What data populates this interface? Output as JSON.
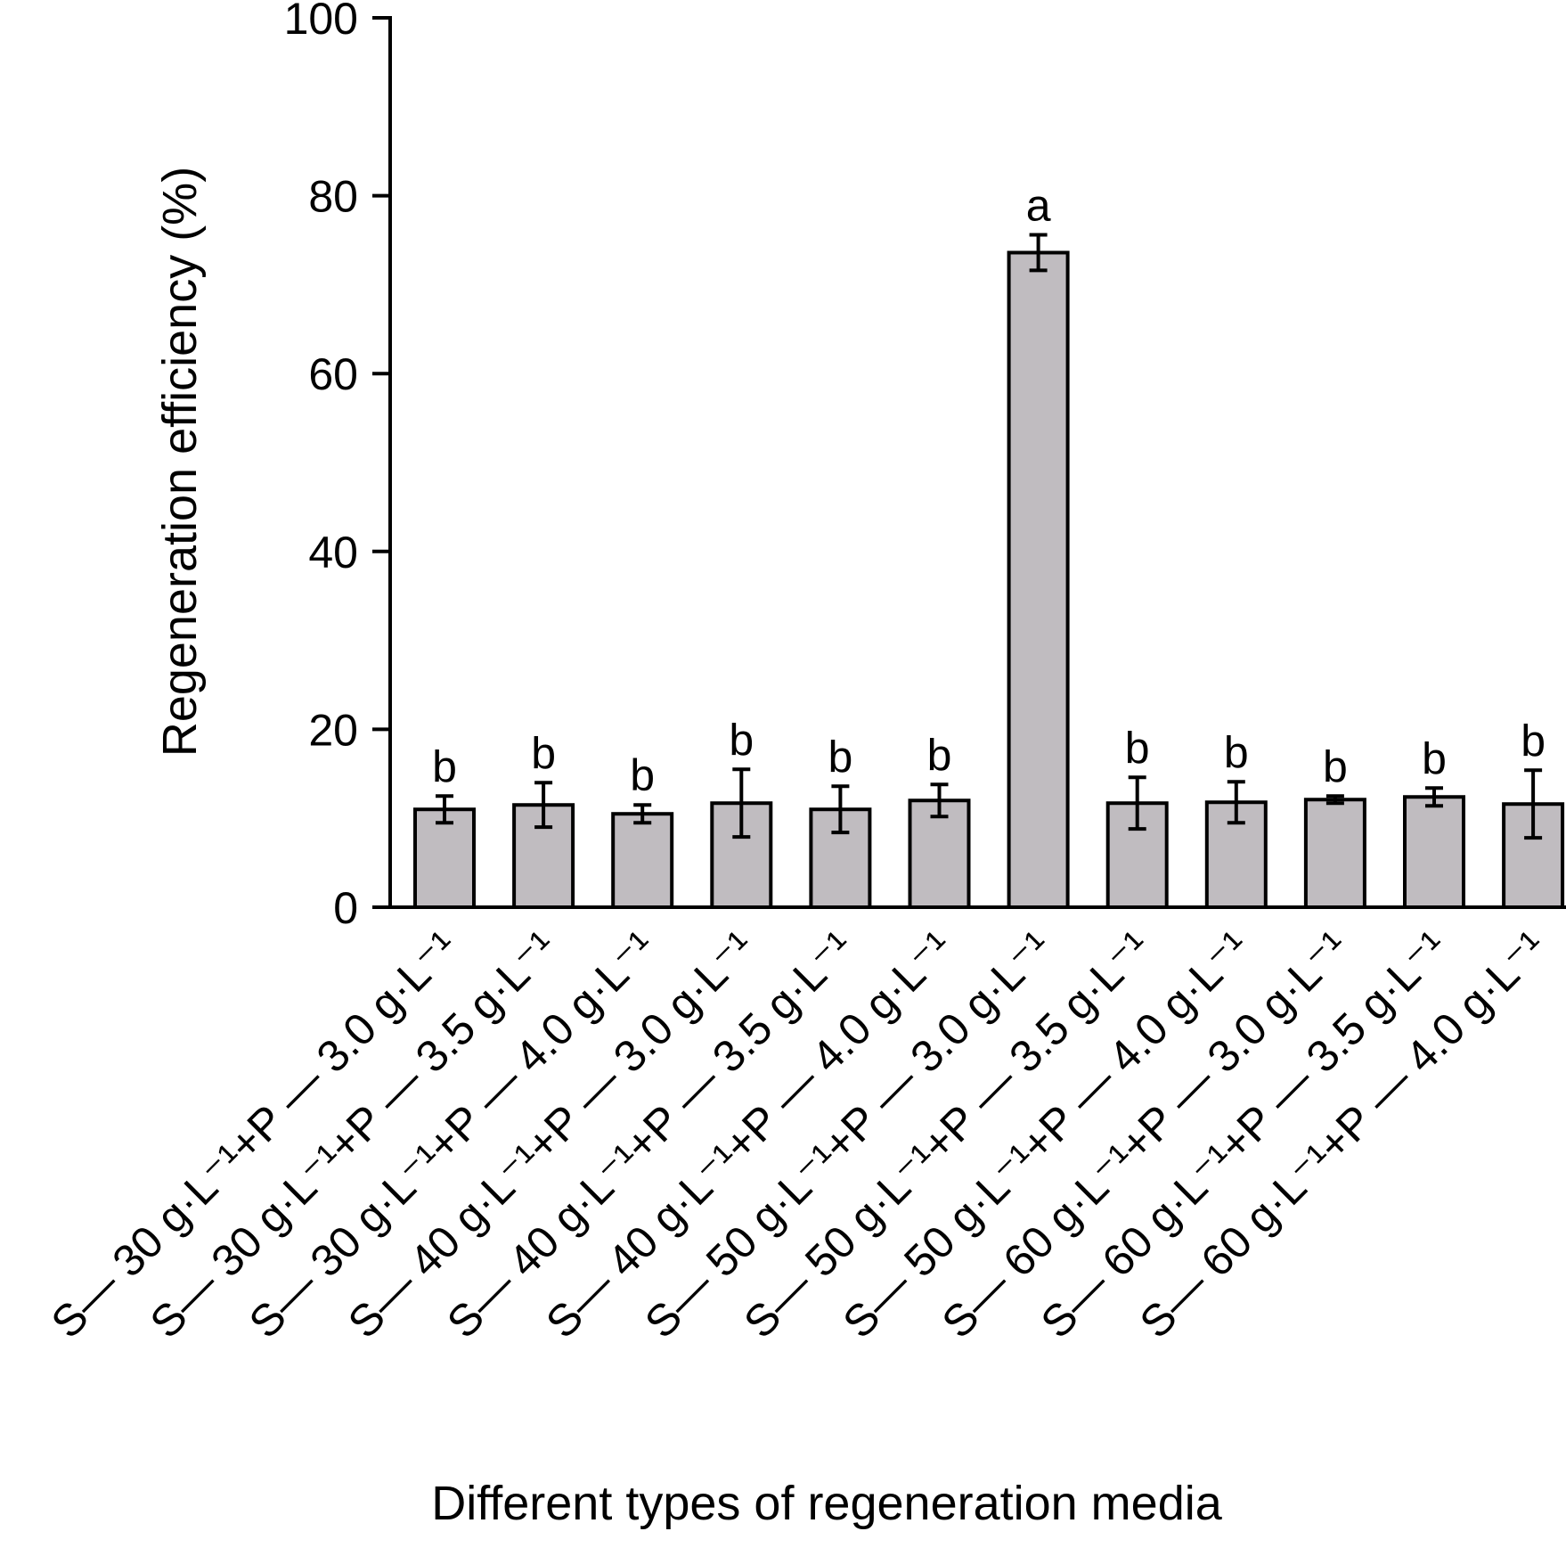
{
  "chart_data": {
    "type": "bar",
    "title": "",
    "ylabel": "Regeneration efficiency (%)",
    "xlabel": "Different types of regeneration media",
    "ylim": [
      0,
      100
    ],
    "yticks": [
      0,
      20,
      40,
      60,
      80,
      100
    ],
    "ytick_labels": [
      "0",
      "20",
      "40",
      "60",
      "80",
      "100"
    ],
    "grid": false,
    "legend": "none",
    "bar_color": "#c0bcc0",
    "categories": [
      "S— 30 g·L⁻¹+P — 3.0 g·L⁻¹",
      "S— 30 g·L⁻¹+P — 3.5 g·L⁻¹",
      "S— 30 g·L⁻¹+P — 4.0 g·L⁻¹",
      "S— 40 g·L⁻¹+P — 3.0 g·L⁻¹",
      "S— 40 g·L⁻¹+P — 3.5 g·L⁻¹",
      "S— 40 g·L⁻¹+P — 4.0 g·L⁻¹",
      "S— 50 g·L⁻¹+P — 3.0 g·L⁻¹",
      "S— 50 g·L⁻¹+P — 3.5 g·L⁻¹",
      "S— 50 g·L⁻¹+P — 4.0 g·L⁻¹",
      "S— 60 g·L⁻¹+P — 3.0 g·L⁻¹",
      "S— 60 g·L⁻¹+P — 3.5 g·L⁻¹",
      "S— 60 g·L⁻¹+P — 4.0 g·L⁻¹"
    ],
    "values": [
      11.0,
      11.5,
      10.5,
      11.7,
      11.0,
      12.0,
      73.6,
      11.7,
      11.8,
      12.1,
      12.4,
      11.6
    ],
    "errors": [
      1.5,
      2.5,
      1.0,
      3.8,
      2.6,
      1.8,
      2.0,
      2.9,
      2.3,
      0.4,
      1.0,
      3.8
    ],
    "significance": [
      "b",
      "b",
      "b",
      "b",
      "b",
      "b",
      "a",
      "b",
      "b",
      "b",
      "b",
      "b"
    ]
  }
}
